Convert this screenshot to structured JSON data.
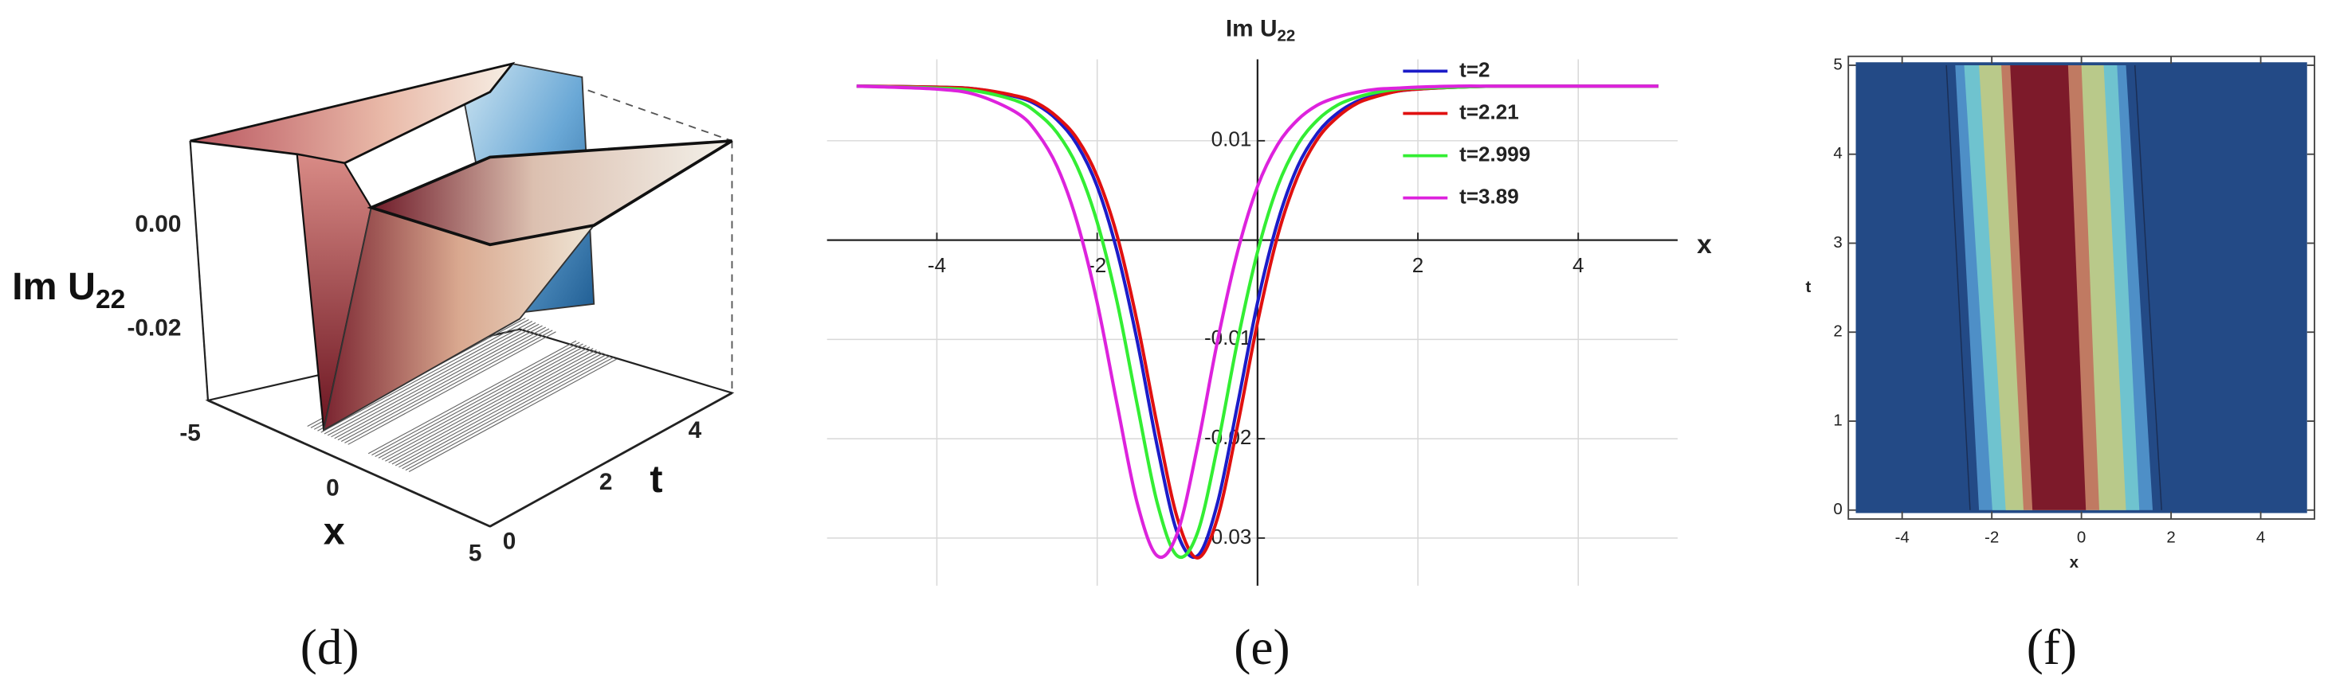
{
  "surface_3d": {
    "caption": "(d)",
    "z_label": "Im U",
    "z_label_sub": "22",
    "z_tick_labels": [
      "0.00",
      "-0.02"
    ],
    "x_tick_labels": [
      "-5",
      "0",
      "5"
    ],
    "t_tick_labels": [
      "0",
      "2",
      "4"
    ],
    "x_label": "x",
    "t_label": "t"
  },
  "chart_data": [
    {
      "type": "line",
      "caption": "(e)",
      "title": "Im U",
      "title_subscript": "22",
      "x_label": "x",
      "x": [
        -5,
        -4,
        -3.5,
        -3,
        -2.75,
        -2.5,
        -2.25,
        -2,
        -1.75,
        -1.5,
        -1.25,
        -1,
        -0.75,
        -0.5,
        -0.25,
        0,
        0.25,
        0.5,
        0.75,
        1,
        1.25,
        1.5,
        1.75,
        2,
        2.5,
        3,
        4,
        5
      ],
      "xlim": [
        -5.37,
        5.24
      ],
      "ylim": [
        -0.0348,
        0.0182
      ],
      "xticks": [
        -4,
        -2,
        2,
        4
      ],
      "yticks": [
        -0.03,
        -0.02,
        -0.01,
        0.01
      ],
      "grid": true,
      "legend": "top-right",
      "series": [
        {
          "name": "t=2",
          "color": "#1c1cc8",
          "values": [
            0.0155,
            0.0154,
            0.0152,
            0.0144,
            0.0136,
            0.0121,
            0.0096,
            0.0054,
            -0.0012,
            -0.0102,
            -0.0208,
            -0.0295,
            -0.0318,
            -0.0265,
            -0.0166,
            -0.0063,
            0.0018,
            0.0074,
            0.0108,
            0.0128,
            0.014,
            0.0146,
            0.015,
            0.0152,
            0.0154,
            0.0155,
            0.0155,
            0.0155
          ]
        },
        {
          "name": "t=2.21",
          "color": "#e01010",
          "values": [
            0.0155,
            0.0154,
            0.0152,
            0.0145,
            0.0138,
            0.0124,
            0.0102,
            0.0064,
            0.0004,
            -0.0083,
            -0.0187,
            -0.028,
            -0.032,
            -0.028,
            -0.0187,
            -0.0083,
            0.0004,
            0.0064,
            0.0102,
            0.0124,
            0.0138,
            0.0145,
            0.015,
            0.0152,
            0.0154,
            0.0155,
            0.0155,
            0.0155
          ]
        },
        {
          "name": "t=2.999",
          "color": "#33ee33",
          "values": [
            0.0155,
            0.0153,
            0.015,
            0.014,
            0.0128,
            0.0108,
            0.0074,
            0.0018,
            -0.0063,
            -0.0166,
            -0.0265,
            -0.0318,
            -0.0295,
            -0.0208,
            -0.0102,
            -0.0012,
            0.0054,
            0.0096,
            0.0121,
            0.0136,
            0.0144,
            0.0149,
            0.0152,
            0.0153,
            0.0154,
            0.0155,
            0.0155,
            0.0155
          ]
        },
        {
          "name": "t=3.89",
          "color": "#dd22dd",
          "values": [
            0.0155,
            0.0152,
            0.0146,
            0.0128,
            0.0108,
            0.0074,
            0.0018,
            -0.0063,
            -0.0166,
            -0.0265,
            -0.0318,
            -0.0295,
            -0.0208,
            -0.0102,
            -0.0012,
            0.0054,
            0.0096,
            0.0121,
            0.0136,
            0.0144,
            0.0149,
            0.0152,
            0.0153,
            0.0154,
            0.0155,
            0.0155,
            0.0155,
            0.0155
          ]
        }
      ]
    },
    {
      "type": "contour",
      "caption": "(f)",
      "x_label": "x",
      "y_label": "t",
      "xlim": [
        -5.2,
        5.2
      ],
      "ylim": [
        -0.1,
        5.1
      ],
      "xticks": [
        -4,
        -2,
        0,
        2,
        4
      ],
      "yticks": [
        0,
        1,
        2,
        3,
        4,
        5
      ]
    }
  ]
}
